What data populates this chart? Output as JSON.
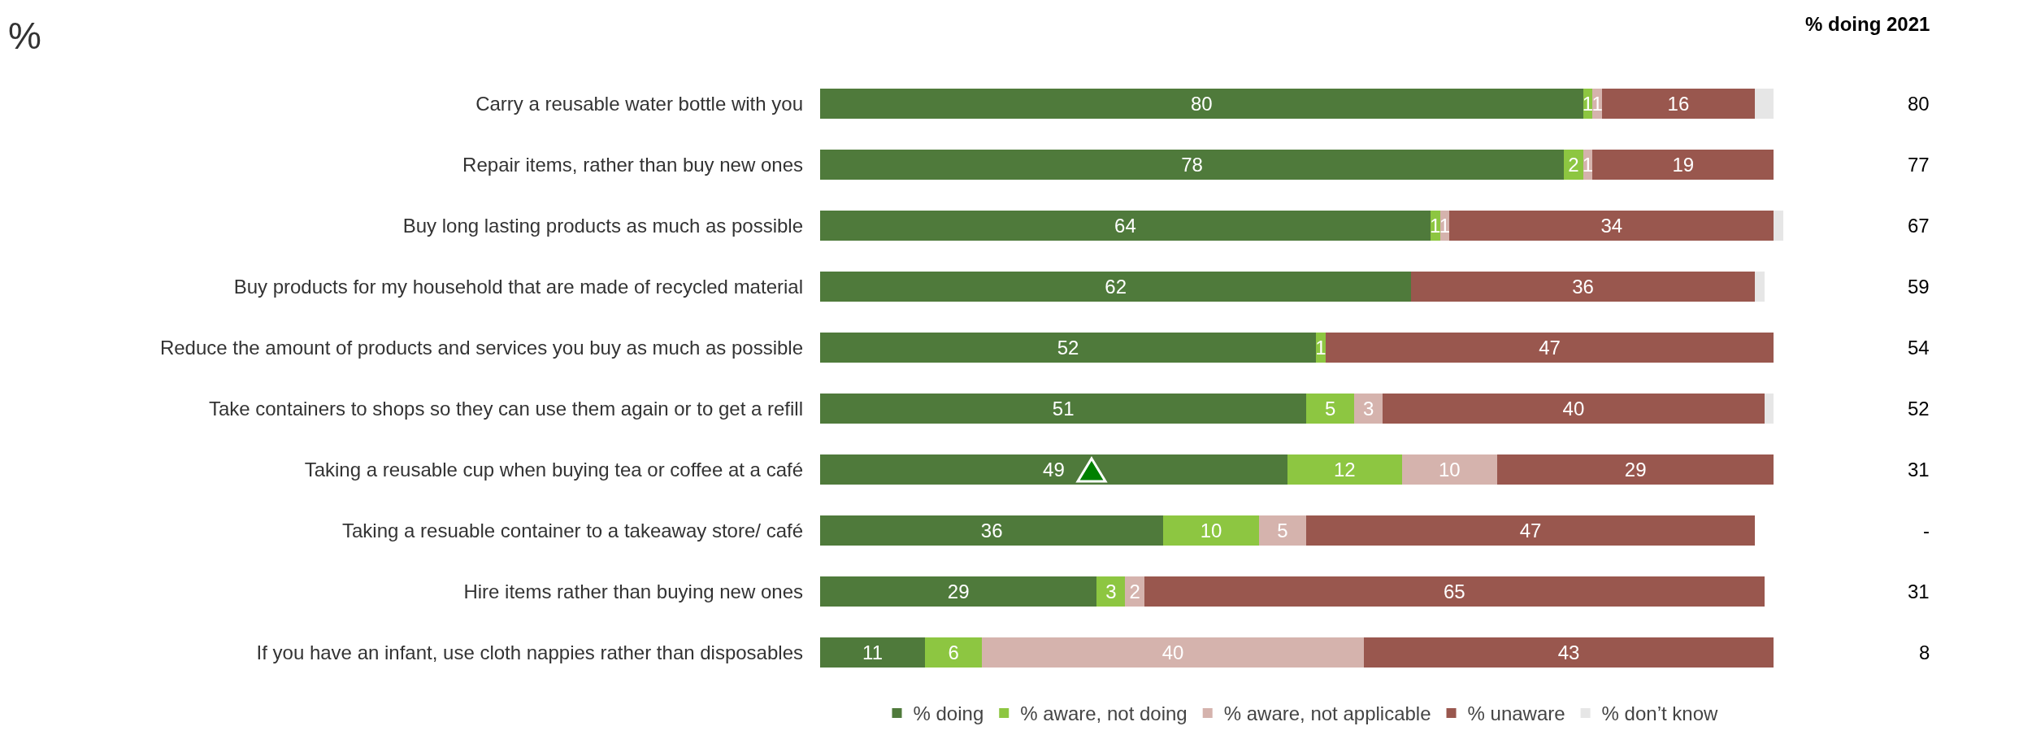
{
  "chart_data": {
    "type": "bar",
    "orientation": "horizontal",
    "stacked": true,
    "title": "%",
    "categories": [
      "Carry a reusable water bottle with you",
      "Repair items, rather than buy new ones",
      "Buy long lasting products as much as possible",
      "Buy products for my household that are made of recycled material",
      "Reduce the amount of products and services you buy as much as possible",
      "Take containers to shops so they can use them again or to get a refill",
      "Taking a reusable cup when buying tea or coffee at a café",
      "Taking a resuable container to a takeaway store/ café",
      "Hire items rather than buying new ones",
      "If you have an infant, use cloth nappies rather than disposables"
    ],
    "series": [
      {
        "name": "% doing",
        "color": "#4f7a3b",
        "values": [
          80,
          78,
          64,
          62,
          52,
          51,
          49,
          36,
          29,
          11
        ],
        "value_labels": [
          "80",
          "78",
          "64",
          "62",
          "52",
          "51",
          "49",
          "36",
          "29",
          "11"
        ]
      },
      {
        "name": "% aware, not doing",
        "color": "#8dc641",
        "values": [
          1,
          2,
          1,
          0,
          1,
          5,
          12,
          10,
          3,
          6
        ],
        "value_labels": [
          "1",
          "2",
          "1",
          null,
          "1",
          "5",
          "12",
          "10",
          "3",
          "6"
        ]
      },
      {
        "name": "% aware, not applicable",
        "color": "#d5b3ad",
        "values": [
          1,
          1,
          1,
          0,
          0,
          3,
          10,
          5,
          2,
          40
        ],
        "value_labels": [
          "1",
          "1",
          "1",
          null,
          null,
          "3",
          "10",
          "5",
          "2",
          "40"
        ]
      },
      {
        "name": "% unaware",
        "color": "#99574e",
        "values": [
          16,
          19,
          34,
          36,
          47,
          40,
          29,
          47,
          65,
          43
        ],
        "value_labels": [
          "16",
          "19",
          "34",
          "36",
          "47",
          "40",
          "29",
          "47",
          "65",
          "43"
        ]
      },
      {
        "name": "% don’t know",
        "color": "#e6e6e6",
        "values": [
          2,
          0,
          1,
          1,
          0,
          1,
          0,
          0,
          0,
          0
        ]
      }
    ],
    "xlim": [
      0,
      101
    ],
    "tick_labels": "y",
    "legend": "bottom",
    "annotations": [
      "% doing 2021",
      "80",
      "77",
      "67",
      "59",
      "54",
      "52",
      "31",
      "-",
      "31",
      "8"
    ]
  }
}
